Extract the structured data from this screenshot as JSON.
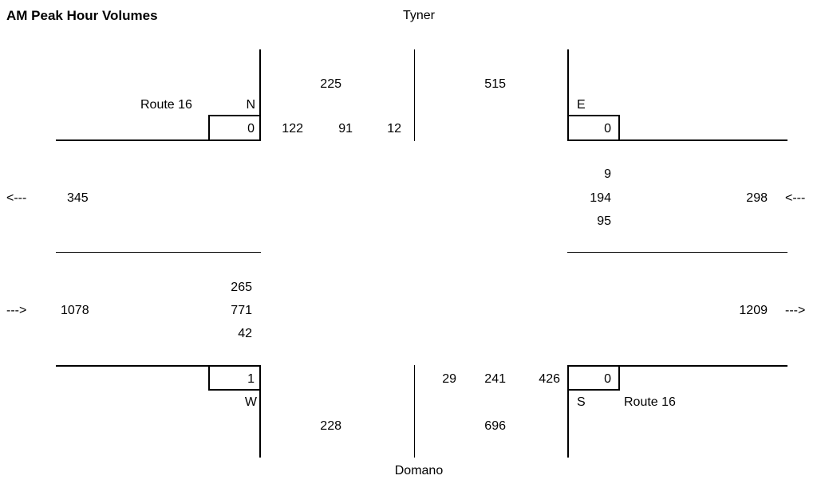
{
  "title": "AM Peak Hour Volumes",
  "streets": {
    "north": "Tyner",
    "south": "Domano",
    "route_nw": "Route 16",
    "route_se": "Route 16"
  },
  "quadrant_labels": {
    "nw": "N",
    "ne": "E",
    "sw": "W",
    "se": "S"
  },
  "arrows": {
    "left": "<---",
    "right": "--->"
  },
  "north_approach": {
    "total_in": "225",
    "total_out": "515",
    "movements": [
      "122",
      "91",
      "12"
    ],
    "box_value": "0"
  },
  "east_approach": {
    "box_value": "0",
    "movements": [
      "9",
      "194",
      "95"
    ],
    "total_in": "298"
  },
  "west_approach": {
    "total_out": "345",
    "movements": [
      "265",
      "771",
      "42"
    ],
    "total_in": "1078",
    "box_value": "1"
  },
  "south_approach": {
    "movements": [
      "29",
      "241",
      "426"
    ],
    "box_value": "0",
    "total_out": "228",
    "total_in": "696"
  },
  "east_out_total": "1209"
}
